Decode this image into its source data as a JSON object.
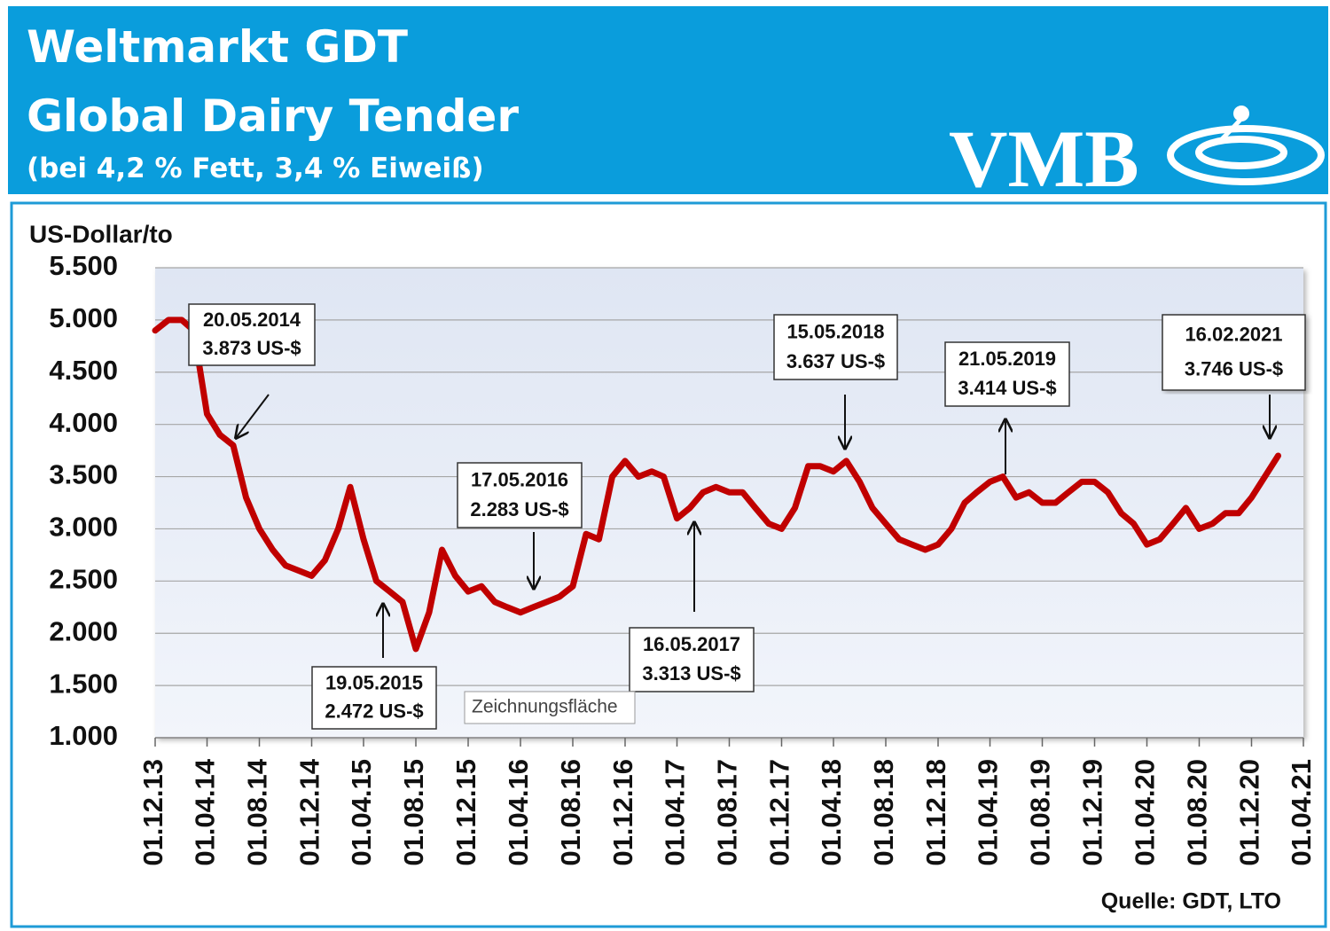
{
  "header": {
    "title": "Weltmarkt GDT",
    "subtitle": "Global Dairy Tender",
    "note": "(bei 4,2 % Fett, 3,4 % Eiweiß)",
    "logo": "VMB"
  },
  "chart_data": {
    "type": "line",
    "y_label": "US-Dollar/to",
    "source": "Quelle: GDT, LTO",
    "tooltip": "Zeichnungsfläche",
    "color": "#c00000",
    "grid": true,
    "xlim": [
      "2013-12-01",
      "2021-04-01"
    ],
    "ylim": [
      1000,
      5500
    ],
    "yticks": [
      {
        "value": 1000,
        "label": "1.000"
      },
      {
        "value": 1500,
        "label": "1.500"
      },
      {
        "value": 2000,
        "label": "2.000"
      },
      {
        "value": 2500,
        "label": "2.500"
      },
      {
        "value": 3000,
        "label": "3.000"
      },
      {
        "value": 3500,
        "label": "3.500"
      },
      {
        "value": 4000,
        "label": "4.000"
      },
      {
        "value": 4500,
        "label": "4.500"
      },
      {
        "value": 5000,
        "label": "5.000"
      },
      {
        "value": 5500,
        "label": "5.500"
      }
    ],
    "xticks": [
      {
        "value": "2013-12-01",
        "label": "01.12.13"
      },
      {
        "value": "2014-04-01",
        "label": "01.04.14"
      },
      {
        "value": "2014-08-01",
        "label": "01.08.14"
      },
      {
        "value": "2014-12-01",
        "label": "01.12.14"
      },
      {
        "value": "2015-04-01",
        "label": "01.04.15"
      },
      {
        "value": "2015-08-01",
        "label": "01.08.15"
      },
      {
        "value": "2015-12-01",
        "label": "01.12.15"
      },
      {
        "value": "2016-04-01",
        "label": "01.04.16"
      },
      {
        "value": "2016-08-01",
        "label": "01.08.16"
      },
      {
        "value": "2016-12-01",
        "label": "01.12.16"
      },
      {
        "value": "2017-04-01",
        "label": "01.04.17"
      },
      {
        "value": "2017-08-01",
        "label": "01.08.17"
      },
      {
        "value": "2017-12-01",
        "label": "01.12.17"
      },
      {
        "value": "2018-04-01",
        "label": "01.04.18"
      },
      {
        "value": "2018-08-01",
        "label": "01.08.18"
      },
      {
        "value": "2018-12-01",
        "label": "01.12.18"
      },
      {
        "value": "2019-04-01",
        "label": "01.04.19"
      },
      {
        "value": "2019-08-01",
        "label": "01.08.19"
      },
      {
        "value": "2019-12-01",
        "label": "01.12.19"
      },
      {
        "value": "2020-04-01",
        "label": "01.04.20"
      },
      {
        "value": "2020-08-01",
        "label": "01.08.20"
      },
      {
        "value": "2020-12-01",
        "label": "01.12.20"
      },
      {
        "value": "2021-04-01",
        "label": "01.04.21"
      }
    ],
    "x": [
      "2013-12-01",
      "2014-01-01",
      "2014-02-01",
      "2014-03-01",
      "2014-04-01",
      "2014-05-01",
      "2014-06-01",
      "2014-07-01",
      "2014-08-01",
      "2014-09-01",
      "2014-10-01",
      "2014-11-01",
      "2014-12-01",
      "2015-01-01",
      "2015-02-01",
      "2015-03-01",
      "2015-04-01",
      "2015-05-01",
      "2015-06-01",
      "2015-07-01",
      "2015-08-01",
      "2015-09-01",
      "2015-10-01",
      "2015-11-01",
      "2015-12-01",
      "2016-01-01",
      "2016-02-01",
      "2016-03-01",
      "2016-04-01",
      "2016-05-01",
      "2016-06-01",
      "2016-07-01",
      "2016-08-01",
      "2016-09-01",
      "2016-10-01",
      "2016-11-01",
      "2016-12-01",
      "2017-01-01",
      "2017-02-01",
      "2017-03-01",
      "2017-04-01",
      "2017-05-01",
      "2017-06-01",
      "2017-07-01",
      "2017-08-01",
      "2017-09-01",
      "2017-10-01",
      "2017-11-01",
      "2017-12-01",
      "2018-01-01",
      "2018-02-01",
      "2018-03-01",
      "2018-04-01",
      "2018-05-01",
      "2018-06-01",
      "2018-07-01",
      "2018-08-01",
      "2018-09-01",
      "2018-10-01",
      "2018-11-01",
      "2018-12-01",
      "2019-01-01",
      "2019-02-01",
      "2019-03-01",
      "2019-04-01",
      "2019-05-01",
      "2019-06-01",
      "2019-07-01",
      "2019-08-01",
      "2019-09-01",
      "2019-10-01",
      "2019-11-01",
      "2019-12-01",
      "2020-01-01",
      "2020-02-01",
      "2020-03-01",
      "2020-04-01",
      "2020-05-01",
      "2020-06-01",
      "2020-07-01",
      "2020-08-01",
      "2020-09-01",
      "2020-10-01",
      "2020-11-01",
      "2020-12-01",
      "2021-01-01",
      "2021-02-01"
    ],
    "values": [
      4900,
      5000,
      5000,
      4900,
      4100,
      3900,
      3800,
      3300,
      3000,
      2800,
      2650,
      2600,
      2550,
      2700,
      3000,
      3400,
      2900,
      2500,
      2400,
      2300,
      1850,
      2200,
      2800,
      2550,
      2400,
      2450,
      2300,
      2250,
      2200,
      2250,
      2300,
      2350,
      2450,
      2950,
      2900,
      3500,
      3650,
      3500,
      3550,
      3500,
      3100,
      3200,
      3350,
      3400,
      3350,
      3350,
      3200,
      3050,
      3000,
      3200,
      3600,
      3600,
      3550,
      3650,
      3450,
      3200,
      3050,
      2900,
      2850,
      2800,
      2850,
      3000,
      3250,
      3350,
      3450,
      3500,
      3300,
      3350,
      3250,
      3250,
      3350,
      3450,
      3450,
      3350,
      3150,
      3050,
      2850,
      2900,
      3050,
      3200,
      3000,
      3050,
      3150,
      3150,
      3300,
      3500,
      3700
    ],
    "annotations": [
      {
        "date": "20.05.2014",
        "text": "3.873 US-$"
      },
      {
        "date": "19.05.2015",
        "text": "2.472 US-$"
      },
      {
        "date": "17.05.2016",
        "text": "2.283 US-$"
      },
      {
        "date": "16.05.2017",
        "text": "3.313 US-$"
      },
      {
        "date": "15.05.2018",
        "text": "3.637 US-$"
      },
      {
        "date": "21.05.2019",
        "text": "3.414 US-$"
      },
      {
        "date": "16.02.2021",
        "text": "3.746 US-$"
      }
    ]
  }
}
